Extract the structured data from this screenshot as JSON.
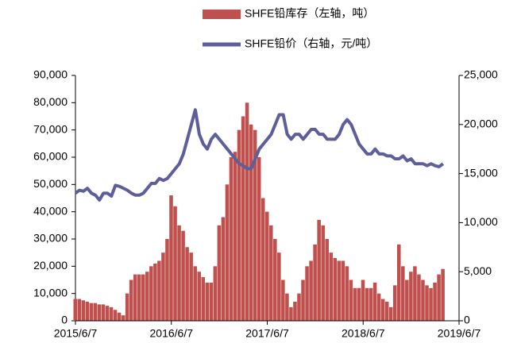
{
  "chart_data": {
    "type": "bar_line_dual_axis",
    "categories": [
      "2015/6/7",
      null,
      null,
      null,
      null,
      null,
      null,
      null,
      null,
      null,
      null,
      null,
      null,
      null,
      null,
      null,
      null,
      null,
      null,
      null,
      null,
      null,
      null,
      null,
      "2016/6/7",
      null,
      null,
      null,
      null,
      null,
      null,
      null,
      null,
      null,
      null,
      null,
      null,
      null,
      null,
      null,
      null,
      null,
      null,
      null,
      null,
      null,
      null,
      null,
      "2017/6/7",
      null,
      null,
      null,
      null,
      null,
      null,
      null,
      null,
      null,
      null,
      null,
      null,
      null,
      null,
      null,
      null,
      null,
      null,
      null,
      null,
      null,
      null,
      null,
      "2018/6/7",
      null,
      null,
      null,
      null,
      null,
      null,
      null,
      null,
      null,
      null,
      null,
      null,
      null,
      null,
      null,
      null,
      null,
      null,
      null,
      null,
      null,
      null,
      null,
      "2019/6/7"
    ],
    "series": [
      {
        "name": "SHFE铅库存（左轴，吨）",
        "type": "bar",
        "axis": "y",
        "color": "#c0504d",
        "values": [
          8000,
          8000,
          7500,
          7000,
          6500,
          6500,
          6000,
          6000,
          5500,
          5000,
          4000,
          3000,
          2000,
          10000,
          15000,
          17000,
          17000,
          17000,
          18000,
          20000,
          21000,
          22000,
          25000,
          30000,
          46000,
          42000,
          35000,
          33000,
          27000,
          25000,
          20000,
          18000,
          16000,
          14000,
          14000,
          20000,
          35000,
          38000,
          50000,
          60000,
          62000,
          70000,
          75000,
          80000,
          72000,
          70000,
          60000,
          45000,
          40000,
          35000,
          30000,
          25000,
          15000,
          10000,
          5000,
          7000,
          10000,
          15000,
          20000,
          22000,
          28000,
          37000,
          35000,
          30000,
          25000,
          23000,
          22000,
          22000,
          20000,
          15000,
          12000,
          12000,
          15000,
          12000,
          12000,
          14000,
          10000,
          8000,
          7000,
          5000,
          13000,
          28000,
          20000,
          15000,
          18000,
          20000,
          17000,
          15000,
          13000,
          12000,
          14000,
          17000,
          19000,
          null,
          null,
          null,
          null
        ]
      },
      {
        "name": "SHFE铅价（右轴，元/吨）",
        "type": "line",
        "axis": "y2",
        "color": "#5e5e9b",
        "values": [
          13000,
          13300,
          13200,
          13500,
          13000,
          12800,
          12300,
          13000,
          13000,
          12700,
          13800,
          13700,
          13500,
          13300,
          13000,
          12800,
          12800,
          13000,
          13500,
          14000,
          14000,
          14500,
          14300,
          14500,
          15000,
          15500,
          16000,
          17000,
          18500,
          20000,
          21500,
          19000,
          18000,
          17500,
          18500,
          19000,
          18500,
          18000,
          17500,
          17000,
          16500,
          16000,
          15800,
          15500,
          15500,
          16500,
          17500,
          18000,
          18500,
          19000,
          20000,
          21000,
          21000,
          19000,
          18500,
          19000,
          19000,
          18500,
          19000,
          19500,
          19500,
          19000,
          19000,
          18500,
          18500,
          18500,
          19000,
          20000,
          20500,
          20000,
          19000,
          18000,
          17500,
          17000,
          17000,
          17500,
          17000,
          17000,
          16800,
          16800,
          16500,
          16500,
          16800,
          16300,
          16500,
          16000,
          16000,
          16000,
          15800,
          16000,
          15800,
          15700,
          16000,
          null,
          null,
          null,
          null
        ]
      }
    ],
    "ylim": [
      0,
      90000
    ],
    "yticks": [
      0,
      {
        "value": 10000,
        "label": "10,000"
      },
      {
        "value": 20000,
        "label": "20,000"
      },
      {
        "value": 30000,
        "label": "30,000"
      },
      {
        "value": 40000,
        "label": "40,000"
      },
      {
        "value": 50000,
        "label": "50,000"
      },
      {
        "value": 60000,
        "label": "60,000"
      },
      {
        "value": 70000,
        "label": "70,000"
      },
      {
        "value": 80000,
        "label": "80,000"
      },
      {
        "value": 90000,
        "label": "90,000"
      }
    ],
    "y2lim": [
      0,
      25000
    ],
    "y2ticks": [
      0,
      {
        "value": 5000,
        "label": "5,000"
      },
      {
        "value": 10000,
        "label": "10,000"
      },
      {
        "value": 15000,
        "label": "15,000"
      },
      {
        "value": 20000,
        "label": "20,000"
      },
      {
        "value": 25000,
        "label": "25,000"
      }
    ],
    "legend": "top"
  }
}
